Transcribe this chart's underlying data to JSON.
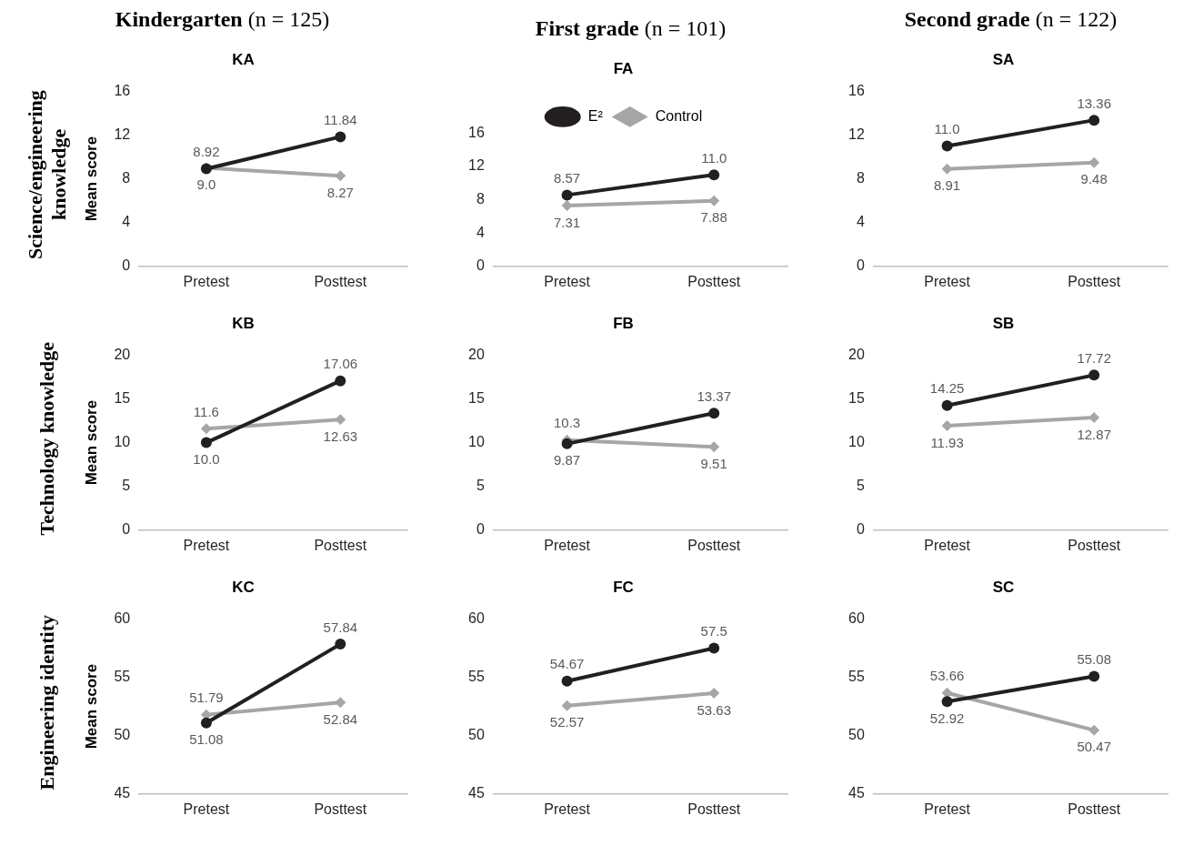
{
  "chart_data": [
    {
      "type": "line",
      "subtitle": "Kindergarten (n = 125)",
      "title": "KA",
      "ylabel": "Mean score",
      "annotations": [
        "Science/engineering knowledge"
      ],
      "categories": [
        "Pretest",
        "Posttest"
      ],
      "ylim": [
        0,
        16
      ],
      "yticks": [
        0,
        4,
        8,
        12,
        16
      ],
      "grid": false,
      "legend": false,
      "series": [
        {
          "color": "#231f20",
          "marker": "circle",
          "values": [
            8.92,
            11.84
          ],
          "value_labels": [
            "8.92",
            "11.84"
          ]
        },
        {
          "color": "#a6a6a6",
          "marker": "diamond",
          "values": [
            9.0,
            8.27
          ],
          "value_labels": [
            "9.0",
            "8.27"
          ]
        }
      ]
    },
    {
      "type": "line",
      "subtitle": "First grade (n = 101)",
      "title": "FA",
      "categories": [
        "Pretest",
        "Posttest"
      ],
      "ylim": [
        0,
        16
      ],
      "yticks": [
        0,
        4,
        8,
        12,
        16
      ],
      "grid": false,
      "legend": "top",
      "series": [
        {
          "name": "E²",
          "color": "#231f20",
          "marker": "circle",
          "values": [
            8.57,
            11.0
          ],
          "value_labels": [
            "8.57",
            "11.0"
          ]
        },
        {
          "name": "Control",
          "color": "#a6a6a6",
          "marker": "diamond",
          "values": [
            7.31,
            7.88
          ],
          "value_labels": [
            "7.31",
            "7.88"
          ]
        }
      ]
    },
    {
      "type": "line",
      "subtitle": "Second grade (n = 122)",
      "title": "SA",
      "categories": [
        "Pretest",
        "Posttest"
      ],
      "ylim": [
        0,
        16
      ],
      "yticks": [
        0,
        4,
        8,
        12,
        16
      ],
      "grid": false,
      "legend": false,
      "series": [
        {
          "color": "#231f20",
          "marker": "circle",
          "values": [
            11.0,
            13.36
          ],
          "value_labels": [
            "11.0",
            "13.36"
          ]
        },
        {
          "color": "#a6a6a6",
          "marker": "diamond",
          "values": [
            8.91,
            9.48
          ],
          "value_labels": [
            "8.91",
            "9.48"
          ]
        }
      ]
    },
    {
      "type": "line",
      "title": "KB",
      "ylabel": "Mean score",
      "annotations": [
        "Technology knowledge"
      ],
      "categories": [
        "Pretest",
        "Posttest"
      ],
      "ylim": [
        0,
        20
      ],
      "yticks": [
        0,
        5,
        10,
        15,
        20
      ],
      "grid": false,
      "legend": false,
      "series": [
        {
          "color": "#231f20",
          "marker": "circle",
          "values": [
            10.0,
            17.06
          ],
          "value_labels": [
            "10.0",
            "17.06"
          ]
        },
        {
          "color": "#a6a6a6",
          "marker": "diamond",
          "values": [
            11.6,
            12.63
          ],
          "value_labels": [
            "11.6",
            "12.63"
          ]
        }
      ]
    },
    {
      "type": "line",
      "title": "FB",
      "categories": [
        "Pretest",
        "Posttest"
      ],
      "ylim": [
        0,
        20
      ],
      "yticks": [
        0,
        5,
        10,
        15,
        20
      ],
      "grid": false,
      "legend": false,
      "series": [
        {
          "color": "#231f20",
          "marker": "circle",
          "values": [
            9.87,
            13.37
          ],
          "value_labels": [
            "9.87",
            "13.37"
          ]
        },
        {
          "color": "#a6a6a6",
          "marker": "diamond",
          "values": [
            10.3,
            9.51
          ],
          "value_labels": [
            "10.3",
            "9.51"
          ]
        }
      ]
    },
    {
      "type": "line",
      "title": "SB",
      "categories": [
        "Pretest",
        "Posttest"
      ],
      "ylim": [
        0,
        20
      ],
      "yticks": [
        0,
        5,
        10,
        15,
        20
      ],
      "grid": false,
      "legend": false,
      "series": [
        {
          "color": "#231f20",
          "marker": "circle",
          "values": [
            14.25,
            17.72
          ],
          "value_labels": [
            "14.25",
            "17.72"
          ]
        },
        {
          "color": "#a6a6a6",
          "marker": "diamond",
          "values": [
            11.93,
            12.87
          ],
          "value_labels": [
            "11.93",
            "12.87"
          ]
        }
      ]
    },
    {
      "type": "line",
      "title": "KC",
      "ylabel": "Mean score",
      "annotations": [
        "Engineering identity"
      ],
      "categories": [
        "Pretest",
        "Posttest"
      ],
      "ylim": [
        45,
        60
      ],
      "yticks": [
        45,
        50,
        55,
        60
      ],
      "grid": false,
      "legend": false,
      "series": [
        {
          "color": "#231f20",
          "marker": "circle",
          "values": [
            51.08,
            57.84
          ],
          "value_labels": [
            "51.08",
            "57.84"
          ]
        },
        {
          "color": "#a6a6a6",
          "marker": "diamond",
          "values": [
            51.79,
            52.84
          ],
          "value_labels": [
            "51.79",
            "52.84"
          ]
        }
      ]
    },
    {
      "type": "line",
      "title": "FC",
      "categories": [
        "Pretest",
        "Posttest"
      ],
      "ylim": [
        45,
        60
      ],
      "yticks": [
        45,
        50,
        55,
        60
      ],
      "grid": false,
      "legend": false,
      "series": [
        {
          "color": "#231f20",
          "marker": "circle",
          "values": [
            54.67,
            57.5
          ],
          "value_labels": [
            "54.67",
            "57.5"
          ]
        },
        {
          "color": "#a6a6a6",
          "marker": "diamond",
          "values": [
            52.57,
            53.63
          ],
          "value_labels": [
            "52.57",
            "53.63"
          ]
        }
      ]
    },
    {
      "type": "line",
      "title": "SC",
      "categories": [
        "Pretest",
        "Posttest"
      ],
      "ylim": [
        45,
        60
      ],
      "yticks": [
        45,
        50,
        55,
        60
      ],
      "grid": false,
      "legend": false,
      "series": [
        {
          "color": "#231f20",
          "marker": "circle",
          "values": [
            52.92,
            55.08
          ],
          "value_labels": [
            "52.92",
            "55.08"
          ]
        },
        {
          "color": "#a6a6a6",
          "marker": "diamond",
          "values": [
            53.66,
            50.47
          ],
          "value_labels": [
            "53.66",
            "50.47"
          ]
        }
      ]
    }
  ]
}
